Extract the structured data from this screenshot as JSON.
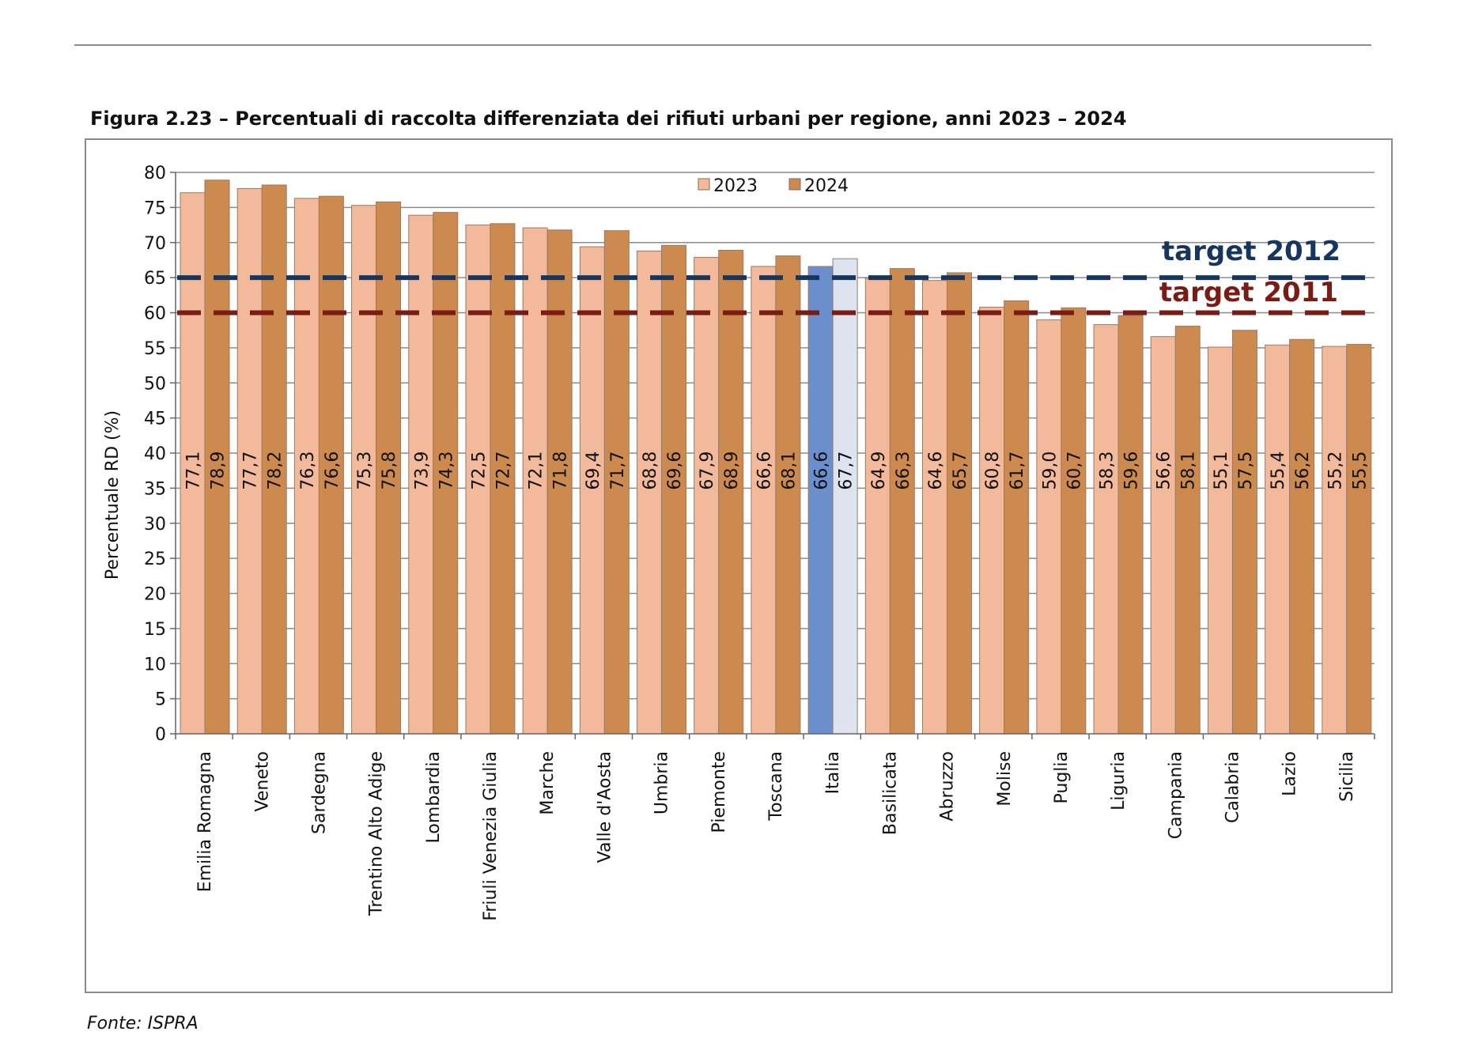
{
  "figure": {
    "title": "Figura 2.23 – Percentuali di raccolta differenziata dei rifiuti urbani per regione, anni 2023 – 2024",
    "source": "Fonte: ISPRA"
  },
  "chart_data": {
    "type": "bar",
    "title": "Figura 2.23 – Percentuali di raccolta differenziata dei rifiuti urbani per regione, anni 2023 – 2024",
    "xlabel": "",
    "ylabel": "Percentuale RD (%)",
    "ylim": [
      0,
      80
    ],
    "yticks": [
      0,
      5,
      10,
      15,
      20,
      25,
      30,
      35,
      40,
      45,
      50,
      55,
      60,
      65,
      70,
      75,
      80
    ],
    "grid": true,
    "legend_position": "top-center",
    "categories": [
      "Emilia Romagna",
      "Veneto",
      "Sardegna",
      "Trentino Alto Adige",
      "Lombardia",
      "Friuli Venezia Giulia",
      "Marche",
      "Valle d'Aosta",
      "Umbria",
      "Piemonte",
      "Toscana",
      "Italia",
      "Basilicata",
      "Abruzzo",
      "Molise",
      "Puglia",
      "Liguria",
      "Campania",
      "Calabria",
      "Lazio",
      "Sicilia"
    ],
    "series": [
      {
        "name": "2023",
        "color": "#f2b99a",
        "highlight_color": "#6b8fcc",
        "values": [
          77.1,
          77.7,
          76.3,
          75.3,
          73.9,
          72.5,
          72.1,
          69.4,
          68.8,
          67.9,
          66.6,
          66.6,
          64.9,
          64.6,
          60.8,
          59.0,
          58.3,
          56.6,
          55.1,
          55.4,
          55.2
        ],
        "labels": [
          "77,1",
          "77,7",
          "76,3",
          "75,3",
          "73,9",
          "72,5",
          "72,1",
          "69,4",
          "68,8",
          "67,9",
          "66,6",
          "66,6",
          "64,9",
          "64,6",
          "60,8",
          "59,0",
          "58,3",
          "56,6",
          "55,1",
          "55,4",
          "55,2"
        ]
      },
      {
        "name": "2024",
        "color": "#cd8a4e",
        "highlight_color": "#dde3ef",
        "values": [
          78.9,
          78.2,
          76.6,
          75.8,
          74.3,
          72.7,
          71.8,
          71.7,
          69.6,
          68.9,
          68.1,
          67.7,
          66.3,
          65.7,
          61.7,
          60.7,
          59.6,
          58.1,
          57.5,
          56.2,
          55.5
        ],
        "labels": [
          "78,9",
          "78,2",
          "76,6",
          "75,8",
          "74,3",
          "72,7",
          "71,8",
          "71,7",
          "69,6",
          "68,9",
          "68,1",
          "67,7",
          "66,3",
          "65,7",
          "61,7",
          "60,7",
          "59,6",
          "58,1",
          "57,5",
          "56,2",
          "55,5"
        ]
      }
    ],
    "highlight_category": "Italia",
    "reference_lines": [
      {
        "label": "target 2012",
        "value": 65,
        "color": "#17365d"
      },
      {
        "label": "target 2011",
        "value": 60,
        "color": "#7b1c14"
      }
    ]
  }
}
